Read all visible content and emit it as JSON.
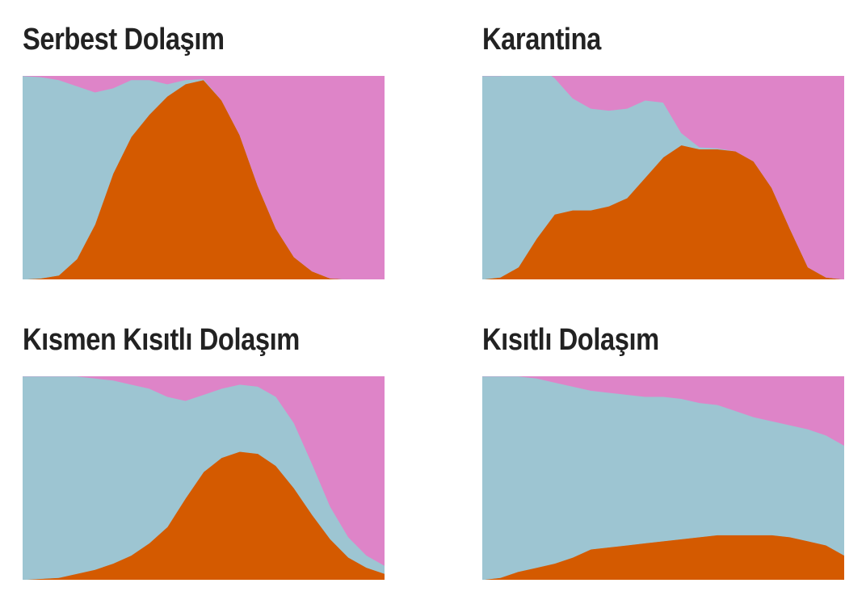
{
  "colors": {
    "susceptible": "#9dc5d2",
    "infected": "#d45a00",
    "recovered": "#de84c8"
  },
  "chart_data": [
    {
      "type": "area",
      "title": "Serbest Dolaşım",
      "x": [
        0,
        5,
        10,
        15,
        20,
        25,
        30,
        35,
        40,
        45,
        50,
        55,
        60,
        65,
        70,
        75,
        80,
        85,
        90,
        95,
        100
      ],
      "series": [
        {
          "values": [
            100,
            99,
            96,
            85,
            65,
            42,
            28,
            17,
            6,
            2,
            0.5,
            0,
            0,
            0,
            0,
            0,
            0,
            0,
            0,
            0,
            0
          ]
        },
        {
          "values": [
            0,
            0.5,
            2,
            10,
            27,
            52,
            70,
            81,
            90,
            96,
            98,
            88,
            71,
            46,
            25,
            11,
            4,
            0.5,
            0,
            0,
            0
          ]
        },
        {
          "values": [
            0,
            0.5,
            2,
            5,
            8,
            6,
            2,
            2,
            4,
            2,
            1.5,
            12,
            29,
            54,
            75,
            89,
            96,
            99.5,
            100,
            100,
            100
          ]
        }
      ],
      "ylim": [
        0,
        100
      ]
    },
    {
      "type": "area",
      "title": "Karantina",
      "x": [
        0,
        5,
        10,
        15,
        20,
        25,
        30,
        35,
        40,
        45,
        50,
        55,
        60,
        65,
        70,
        75,
        80,
        85,
        90,
        95,
        100
      ],
      "series": [
        {
          "values": [
            100,
            99,
            96,
            85,
            67,
            55,
            50,
            47,
            44,
            38,
            27,
            6,
            1,
            0.5,
            0,
            0,
            0,
            0,
            0,
            0,
            0
          ]
        },
        {
          "values": [
            0,
            1,
            6,
            20,
            32,
            34,
            34,
            36,
            40,
            50,
            60,
            66,
            64,
            64,
            63,
            58,
            45,
            25,
            6,
            1,
            0
          ]
        },
        {
          "values": [
            0,
            0,
            0,
            0,
            1,
            11,
            16,
            17,
            16,
            12,
            13,
            28,
            35,
            35.5,
            37,
            42,
            55,
            75,
            94,
            99,
            100
          ]
        }
      ],
      "ylim": [
        0,
        100
      ]
    },
    {
      "type": "area",
      "title": "Kısmen Kısıtlı Dolaşım",
      "x": [
        0,
        5,
        10,
        15,
        20,
        25,
        30,
        35,
        40,
        45,
        50,
        55,
        60,
        65,
        70,
        75,
        80,
        85,
        90,
        95,
        100
      ],
      "series": [
        {
          "values": [
            100,
            99.5,
            99,
            97,
            94,
            90,
            84,
            76,
            64,
            48,
            38,
            34,
            33,
            33,
            34,
            32,
            25,
            16,
            10,
            6,
            4
          ]
        },
        {
          "values": [
            0,
            0.5,
            1,
            3,
            5,
            8,
            12,
            18,
            26,
            40,
            53,
            60,
            63,
            62,
            56,
            45,
            32,
            20,
            11,
            6,
            3
          ]
        },
        {
          "values": [
            0,
            0,
            0,
            0,
            1,
            2,
            4,
            6,
            10,
            12,
            9,
            6,
            4,
            5,
            10,
            23,
            43,
            64,
            79,
            88,
            93
          ]
        }
      ],
      "ylim": [
        0,
        100
      ]
    },
    {
      "type": "area",
      "title": "Kısıtlı Dolaşım",
      "x": [
        0,
        5,
        10,
        15,
        20,
        25,
        30,
        35,
        40,
        45,
        50,
        55,
        60,
        65,
        70,
        75,
        80,
        85,
        90,
        95,
        100
      ],
      "series": [
        {
          "values": [
            100,
            99,
            96,
            93,
            89,
            84,
            78,
            76,
            74,
            72,
            71,
            69,
            66,
            64,
            61,
            58,
            56,
            55,
            55,
            54,
            54
          ]
        },
        {
          "values": [
            0,
            1,
            4,
            6,
            8,
            11,
            15,
            16,
            17,
            18,
            19,
            20,
            21,
            22,
            22,
            22,
            22,
            21,
            19,
            17,
            12
          ]
        },
        {
          "values": [
            0,
            0,
            0,
            1,
            3,
            5,
            7,
            8,
            9,
            10,
            10,
            11,
            13,
            14,
            17,
            20,
            22,
            24,
            26,
            29,
            34
          ]
        }
      ],
      "ylim": [
        0,
        100
      ]
    }
  ]
}
